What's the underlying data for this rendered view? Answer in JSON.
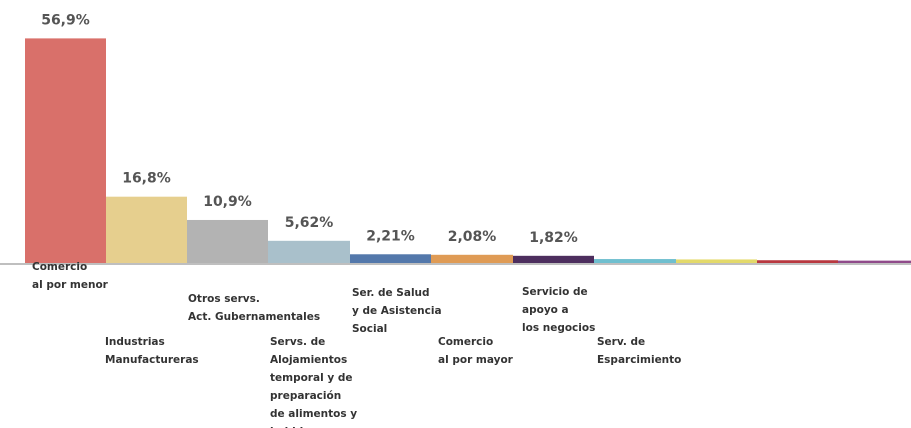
{
  "chart_data": {
    "type": "bar",
    "categories": [
      "Comercio\nal por menor",
      "Industrias\nManufactureras",
      "Otros servs.\nAct. Gubernamentales",
      "Servs. de\nAlojamientos\ntemporal y de\npreparación\nde alimentos y\nbebidas",
      "Ser. de Salud\ny de Asistencia\nSocial",
      "Comercio\nal por mayor",
      "Servicio de\napoyo a\nlos negocios",
      "Serv. de\nEsparcimiento",
      null,
      null,
      null
    ],
    "values": [
      56.9,
      16.8,
      10.9,
      5.62,
      2.21,
      2.08,
      1.82,
      1.0,
      0.9,
      0.7,
      0.6
    ],
    "value_labels": [
      "56,9%",
      "16,8%",
      "10,9%",
      "5,62%",
      "2,21%",
      "2,08%",
      "1,82%",
      null,
      null,
      null,
      null
    ],
    "colors": [
      "#d9706a",
      "#e6cf8e",
      "#b3b3b3",
      "#a9c0cb",
      "#5478ab",
      "#df9b55",
      "#4d2e5e",
      "#6fbfcf",
      "#e3d96a",
      "#b8383f",
      "#8f4a8a"
    ],
    "ylim": [
      0,
      57
    ]
  }
}
